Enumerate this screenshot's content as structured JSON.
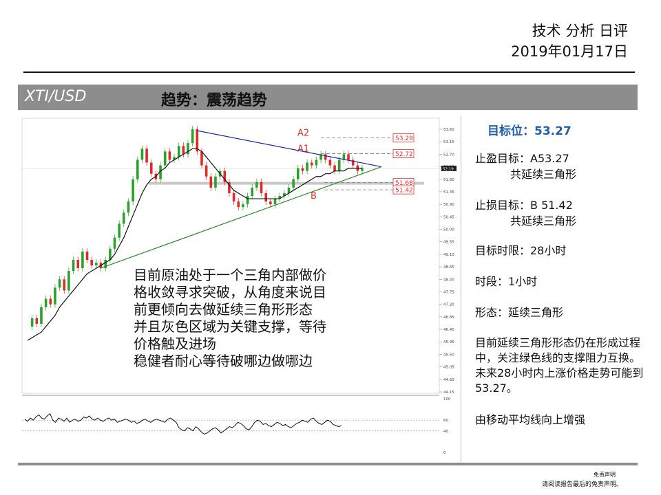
{
  "header": {
    "title": "技术 分析 日评",
    "date": "2019年01月17日"
  },
  "banner": {
    "symbol": "XTI/USD",
    "trend": "趋势：震荡趋势"
  },
  "panel": {
    "target": "目标位：53.27",
    "take_profit": "止盈目标：A53.27",
    "take_profit_note": "共延续三角形",
    "stop_loss": "止损目标：B 51.42",
    "stop_loss_note": "共延续三角形",
    "time_limit": "目标时限：28小时",
    "timeframe": "时段：1小时",
    "pattern": "形态：延续三角形",
    "summary": "目前延续三角形形态仍在形成过程中，关注绿色线的支撑阻力互换。未来28小时内上涨价格走势可能到53.27。",
    "ma_note": "由移动平均线向上增强"
  },
  "overlay_lines": [
    "目前原油处于一个三角内部做价",
    "格收敛寻求突破，从角度来说目",
    "前更倾向去做延续三角形形态",
    "并且灰色区域为关键支撑，等待",
    "价格触及进场",
    "稳健者耐心等待破哪边做哪边"
  ],
  "disclaimer": {
    "line1": "免责声明",
    "line2": "请阅读报告最后的免责声明。"
  },
  "chart_data": {
    "type": "line",
    "title": "",
    "xlabel": "",
    "ylabel": "",
    "ylim": [
      44.15,
      53.6
    ],
    "y_ticks": [
      53.6,
      53.15,
      52.7,
      52.25,
      51.8,
      51.35,
      50.9,
      50.45,
      50.0,
      49.55,
      49.1,
      48.65,
      48.2,
      47.75,
      47.3,
      46.85,
      46.4,
      45.95,
      45.5,
      45.05,
      44.6,
      44.15
    ],
    "current_price": "52.19",
    "levels": [
      {
        "label": "A2",
        "value": 53.29,
        "tag": "53.29"
      },
      {
        "label": "A1",
        "value": 52.72,
        "tag": "52.72"
      },
      {
        "label": "",
        "value": 51.68,
        "tag": "51.68"
      },
      {
        "label": "B",
        "value": 51.42,
        "tag": "51.42"
      }
    ],
    "price_series": [
      46.5,
      46.8,
      46.6,
      47.2,
      47.5,
      47.3,
      47.9,
      48.2,
      47.8,
      48.5,
      48.9,
      48.6,
      49.2,
      48.9,
      48.7,
      48.8,
      48.6,
      48.9,
      49.3,
      49.7,
      50.2,
      50.6,
      51.0,
      51.8,
      52.5,
      52.9,
      52.4,
      52.0,
      51.8,
      52.3,
      52.8,
      52.5,
      52.6,
      53.0,
      52.7,
      53.1,
      53.6,
      52.8,
      52.3,
      51.9,
      51.5,
      51.9,
      52.1,
      51.7,
      51.3,
      51.0,
      50.8,
      50.9,
      51.2,
      51.5,
      51.7,
      51.3,
      51.0,
      50.9,
      51.1,
      51.2,
      51.3,
      51.5,
      51.8,
      52.2,
      52.1,
      52.4,
      52.3,
      52.5,
      52.7,
      52.5,
      52.3,
      52.1,
      52.5,
      52.7,
      52.5,
      52.3,
      52.1,
      52.2
    ],
    "ma_series": [
      46.0,
      46.1,
      46.2,
      46.3,
      46.5,
      46.7,
      46.9,
      47.2,
      47.4,
      47.6,
      47.8,
      48.0,
      48.2,
      48.4,
      48.5,
      48.6,
      48.7,
      48.8,
      48.9,
      49.1,
      49.4,
      49.7,
      50.1,
      50.5,
      50.9,
      51.3,
      51.6,
      51.8,
      51.9,
      52.1,
      52.2,
      52.4,
      52.5,
      52.6,
      52.7,
      52.8,
      52.9,
      52.9,
      52.8,
      52.6,
      52.4,
      52.2,
      52.0,
      51.8,
      51.6,
      51.4,
      51.3,
      51.2,
      51.1,
      51.1,
      51.1,
      51.1,
      51.1,
      51.1,
      51.1,
      51.1,
      51.2,
      51.3,
      51.4,
      51.5,
      51.6,
      51.7,
      51.8,
      51.9,
      51.9,
      52.0,
      52.0,
      52.1,
      52.1,
      52.1,
      52.2,
      52.2,
      52.2,
      52.2
    ],
    "oscillator": {
      "ylim": [
        0,
        100
      ],
      "ticks": [
        100,
        60,
        40,
        0
      ],
      "series": [
        62,
        58,
        64,
        60,
        66,
        70,
        64,
        62,
        68,
        72,
        60,
        56,
        64,
        62,
        58,
        64,
        56,
        60,
        62,
        58,
        60,
        66,
        64,
        68,
        62,
        60,
        64,
        60,
        58,
        62,
        64,
        60,
        62,
        56,
        58,
        60,
        62,
        60,
        56,
        58,
        54,
        56,
        60,
        62,
        58,
        56,
        60,
        62,
        60,
        58,
        56,
        62,
        64,
        60,
        56,
        46,
        42,
        40,
        46,
        44,
        40,
        48,
        44,
        38,
        34,
        36,
        40,
        44,
        46,
        42,
        36,
        40,
        44,
        48,
        46,
        50,
        56,
        54,
        50,
        44,
        42,
        48,
        56,
        60,
        58,
        52,
        54,
        50,
        48,
        52,
        56,
        54,
        50,
        52,
        48,
        46,
        50,
        54,
        56,
        60,
        58,
        56,
        62,
        64,
        58,
        54,
        52,
        56,
        60,
        58,
        52,
        50,
        48,
        50
      ]
    },
    "annotations": [
      "A2",
      "A1",
      "B"
    ]
  }
}
